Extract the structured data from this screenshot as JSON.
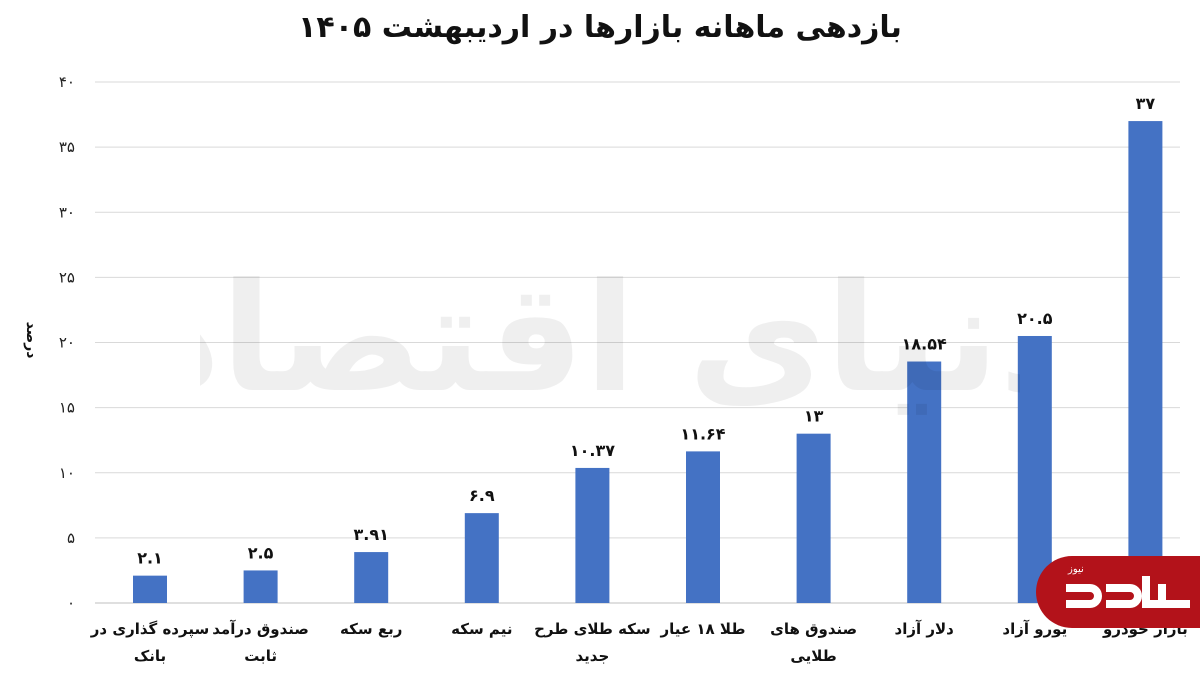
{
  "chart_data": {
    "type": "bar",
    "title": "بازدهی ماهانه بازارها در اردیبهشت ۱۴۰۵",
    "ylabel": "درصد",
    "ylim": [
      0,
      40
    ],
    "yticks": [
      "۰",
      "۵",
      "۱۰",
      "۱۵",
      "۲۰",
      "۲۵",
      "۳۰",
      "۳۵",
      "۴۰"
    ],
    "grid": true,
    "categories": [
      [
        "سپرده گذاری در",
        "بانک"
      ],
      [
        "صندوق درآمد",
        "ثابت"
      ],
      [
        "ربع سکه"
      ],
      [
        "نیم سکه"
      ],
      [
        "سکه طلای طرح",
        "جدید"
      ],
      [
        "طلا ۱۸ عیار"
      ],
      [
        "صندوق های",
        "طلایی"
      ],
      [
        "دلار آزاد"
      ],
      [
        "یورو آزاد"
      ],
      [
        "بازار خودرو"
      ]
    ],
    "values": [
      2.1,
      2.5,
      3.91,
      6.9,
      10.37,
      11.64,
      13,
      18.54,
      20.5,
      37
    ],
    "value_labels": [
      "۲.۱",
      "۲.۵",
      "۳.۹۱",
      "۶.۹",
      "۱۰.۳۷",
      "۱۱.۶۴",
      "۱۳",
      "۱۸.۵۴",
      "۲۰.۵",
      "۳۷"
    ],
    "bar_color": "#4472c4"
  },
  "watermark": {
    "text": "دنیای اقتصاد"
  },
  "logo": {
    "small_text": "نیوز",
    "main_text": "ددا",
    "color": "#b3121a"
  }
}
